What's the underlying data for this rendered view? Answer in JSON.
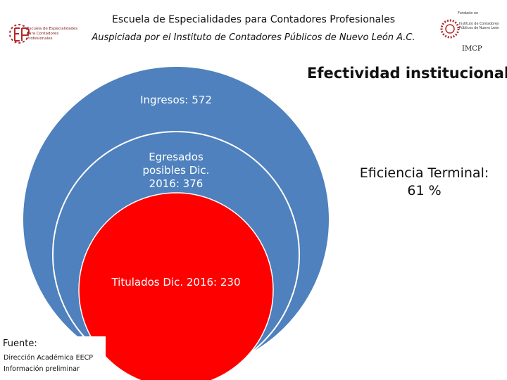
{
  "header": {
    "title": "Escuela de Especialidades para Contadores Profesionales",
    "subtitle": "Auspiciada por el Instituto de Contadores Públicos de Nuevo León A.C.",
    "logo_left_text": "Escuela de Especialidades Para Contadores Profesionales",
    "logo_right_small": "Fundado en",
    "logo_right_name": "Instituto de Contadores Públicos de Nuevo León",
    "logo_right_abbr": "IMCP"
  },
  "section_title": "Efectividad institucional",
  "diagram": {
    "outer_label": "Ingresos: 572",
    "middle_label": "Egresados posibles Dic. 2016: 376",
    "inner_label": "Titulados Dic. 2016: 230"
  },
  "efficiency": {
    "line1": "Eficiencia Terminal:",
    "line2": "61 %"
  },
  "source": {
    "label": "Fuente:",
    "line1": "Dirección Académica EECP",
    "line2": "Información preliminar"
  },
  "colors": {
    "outer": "#4e81bd",
    "middle": "#4e81bd",
    "inner": "#ff0000",
    "stroke": "#ffffff"
  }
}
